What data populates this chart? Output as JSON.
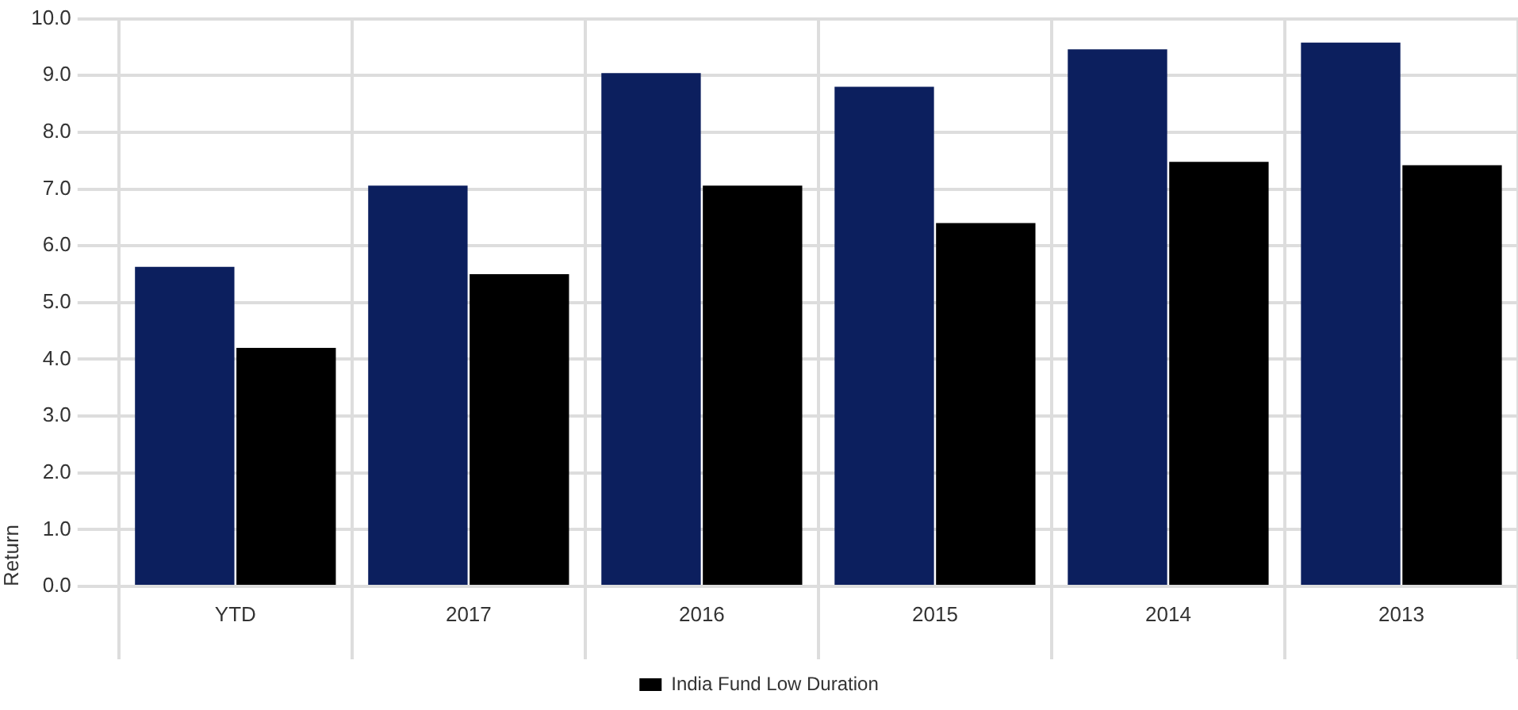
{
  "chart_data": {
    "type": "bar",
    "ylabel": "Return",
    "categories": [
      "YTD",
      "2017",
      "2016",
      "2015",
      "2014",
      "2013"
    ],
    "series": [
      {
        "color": "#0c1f5e",
        "values": [
          5.63,
          7.06,
          9.04,
          8.8,
          9.46,
          9.58
        ]
      },
      {
        "name": "India Fund Low Duration",
        "color": "#000000",
        "values": [
          4.2,
          5.5,
          7.06,
          6.4,
          7.48,
          7.42
        ]
      }
    ],
    "ylim": [
      0,
      10
    ],
    "yticks": [
      {
        "value": 0,
        "label": "0.0"
      },
      {
        "value": 1,
        "label": "1.0"
      },
      {
        "value": 2,
        "label": "2.0"
      },
      {
        "value": 3,
        "label": "3.0"
      },
      {
        "value": 4,
        "label": "4.0"
      },
      {
        "value": 5,
        "label": "5.0"
      },
      {
        "value": 6,
        "label": "6.0"
      },
      {
        "value": 7,
        "label": "7.0"
      },
      {
        "value": 8,
        "label": "8.0"
      },
      {
        "value": 9,
        "label": "9.0"
      },
      {
        "value": 10,
        "label": "10.0"
      }
    ],
    "grid": true,
    "legend": "bottom"
  }
}
